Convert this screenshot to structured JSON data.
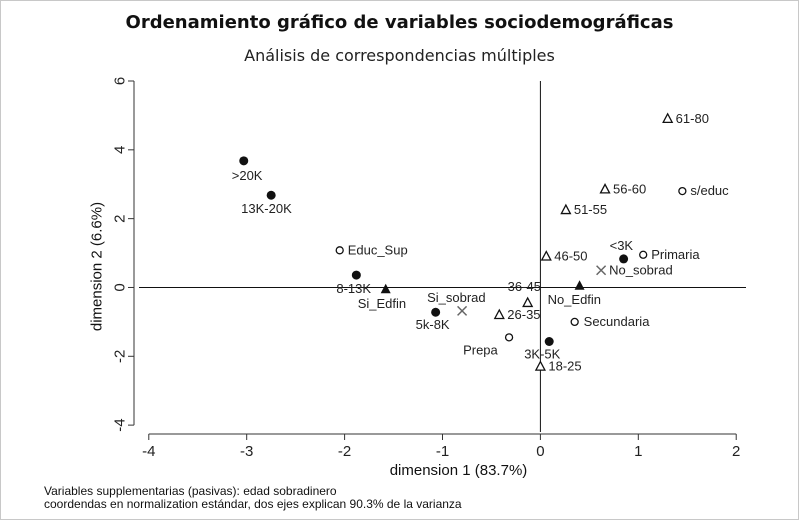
{
  "title": "Ordenamiento gráfico de variables sociodemográficas",
  "subtitle": "Análisis de correspondencias múltiples",
  "note": [
    "Variables supplementarias (pasivas): edad sobradinero",
    "coordendas en normalization estándar, dos ejes explican 90.3% de la varianza"
  ],
  "chart_data": {
    "type": "scatter",
    "title": "Ordenamiento gráfico de variables sociodemográficas",
    "subtitle": "Análisis de correspondencias múltiples",
    "xlabel": "dimension 1 (83.7%)",
    "ylabel": "dimension 2 (6.6%)",
    "xlim": [
      -4.1,
      2.1
    ],
    "ylim": [
      -4.2,
      6.0
    ],
    "xticks": [
      -4,
      -3,
      -2,
      -1,
      0,
      1,
      2
    ],
    "yticks": [
      -4,
      -2,
      0,
      2,
      4,
      6
    ],
    "grid": false,
    "reference_lines": {
      "x": 0,
      "y": 0
    },
    "colors": {
      "markers": "#111111",
      "supplementary": "#666666"
    },
    "points": [
      {
        "label": "61-80",
        "marker": "triangle-open",
        "x": 1.3,
        "y": 4.9
      },
      {
        "label": ">20K",
        "marker": "circle-filled",
        "x": -3.03,
        "y": 3.68
      },
      {
        "label": "13K-20K",
        "marker": "circle-filled",
        "x": -2.75,
        "y": 2.68
      },
      {
        "label": "56-60",
        "marker": "triangle-open",
        "x": 0.66,
        "y": 2.85
      },
      {
        "label": "s/educ",
        "marker": "circle-open",
        "x": 1.45,
        "y": 2.8
      },
      {
        "label": "51-55",
        "marker": "triangle-open",
        "x": 0.26,
        "y": 2.25
      },
      {
        "label": "Educ_Sup",
        "marker": "circle-open",
        "x": -2.05,
        "y": 1.08
      },
      {
        "label": "<3K",
        "marker": "circle-filled",
        "x": 0.85,
        "y": 0.83
      },
      {
        "label": "Primaria",
        "marker": "circle-open",
        "x": 1.05,
        "y": 0.95
      },
      {
        "label": "46-50",
        "marker": "triangle-open",
        "x": 0.06,
        "y": 0.9
      },
      {
        "label": "No_sobrad",
        "marker": "x",
        "x": 0.62,
        "y": 0.5
      },
      {
        "label": "8-13K",
        "marker": "circle-filled",
        "x": -1.88,
        "y": 0.36
      },
      {
        "label": "Si_Edfin",
        "marker": "triangle-filled",
        "x": -1.58,
        "y": -0.05
      },
      {
        "label": "No_Edfin",
        "marker": "triangle-filled",
        "x": 0.4,
        "y": 0.05
      },
      {
        "label": "36-45",
        "marker": "triangle-open",
        "x": -0.13,
        "y": -0.45
      },
      {
        "label": "Si_sobrad",
        "marker": "x",
        "x": -0.8,
        "y": -0.68
      },
      {
        "label": "5k-8K",
        "marker": "circle-filled",
        "x": -1.07,
        "y": -0.72
      },
      {
        "label": "26-35",
        "marker": "triangle-open",
        "x": -0.42,
        "y": -0.8
      },
      {
        "label": "Secundaria",
        "marker": "circle-open",
        "x": 0.35,
        "y": -1.0
      },
      {
        "label": "Prepa",
        "marker": "circle-open",
        "x": -0.32,
        "y": -1.45
      },
      {
        "label": "3K-5K",
        "marker": "circle-filled",
        "x": 0.09,
        "y": -1.57
      },
      {
        "label": "18-25",
        "marker": "triangle-open",
        "x": 0.0,
        "y": -2.3
      }
    ]
  }
}
